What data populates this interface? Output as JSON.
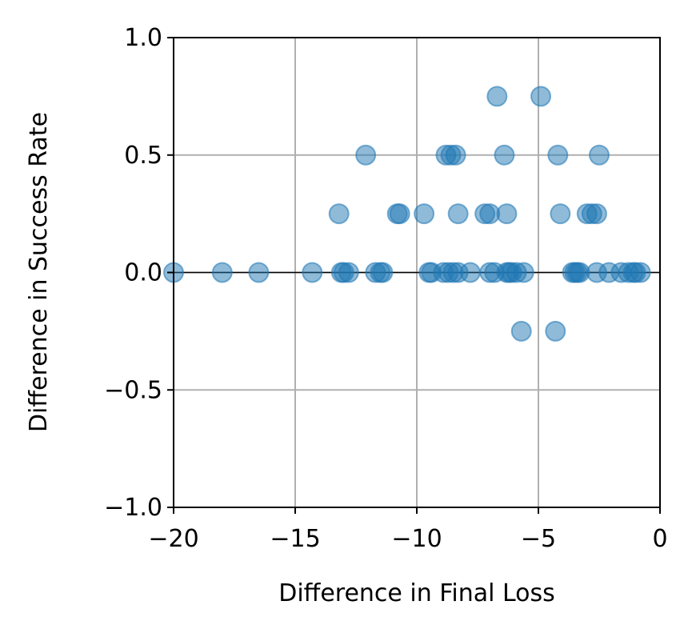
{
  "chart_data": {
    "type": "scatter",
    "title": "",
    "xlabel": "Difference in Final Loss",
    "ylabel": "Difference in Success Rate",
    "xlim": [
      -20,
      0
    ],
    "ylim": [
      -1.0,
      1.0
    ],
    "xticks": [
      -20,
      -15,
      -10,
      -5,
      0
    ],
    "yticks": [
      -1.0,
      -0.5,
      0.0,
      0.5,
      1.0
    ],
    "xtick_labels": [
      "−20",
      "−15",
      "−10",
      "−5",
      "0"
    ],
    "ytick_labels": [
      "−1.0",
      "−0.5",
      "0.0",
      "0.5",
      "1.0"
    ],
    "grid": true,
    "horizontal_reference_line": 0,
    "marker_color": "#1f77b4",
    "marker_alpha": 0.5,
    "points": [
      {
        "x": -20.0,
        "y": 0
      },
      {
        "x": -18.0,
        "y": 0
      },
      {
        "x": -16.5,
        "y": 0
      },
      {
        "x": -14.3,
        "y": 0
      },
      {
        "x": -13.1,
        "y": 0
      },
      {
        "x": -13.0,
        "y": 0
      },
      {
        "x": -12.8,
        "y": 0
      },
      {
        "x": -11.7,
        "y": 0
      },
      {
        "x": -11.5,
        "y": 0
      },
      {
        "x": -11.4,
        "y": 0
      },
      {
        "x": -9.5,
        "y": 0
      },
      {
        "x": -9.4,
        "y": 0
      },
      {
        "x": -8.9,
        "y": 0
      },
      {
        "x": -8.7,
        "y": 0
      },
      {
        "x": -8.5,
        "y": 0
      },
      {
        "x": -8.3,
        "y": 0
      },
      {
        "x": -7.8,
        "y": 0
      },
      {
        "x": -7.0,
        "y": 0
      },
      {
        "x": -6.8,
        "y": 0
      },
      {
        "x": -6.3,
        "y": 0
      },
      {
        "x": -6.2,
        "y": 0
      },
      {
        "x": -6.1,
        "y": 0
      },
      {
        "x": -5.9,
        "y": 0
      },
      {
        "x": -5.6,
        "y": 0
      },
      {
        "x": -3.6,
        "y": 0
      },
      {
        "x": -3.5,
        "y": 0
      },
      {
        "x": -3.4,
        "y": 0
      },
      {
        "x": -3.3,
        "y": 0
      },
      {
        "x": -2.6,
        "y": 0
      },
      {
        "x": -2.1,
        "y": 0
      },
      {
        "x": -1.6,
        "y": 0
      },
      {
        "x": -1.3,
        "y": 0
      },
      {
        "x": -1.1,
        "y": 0
      },
      {
        "x": -1.0,
        "y": 0
      },
      {
        "x": -0.8,
        "y": 0
      },
      {
        "x": -13.2,
        "y": 0.25
      },
      {
        "x": -10.8,
        "y": 0.25
      },
      {
        "x": -10.7,
        "y": 0.25
      },
      {
        "x": -9.7,
        "y": 0.25
      },
      {
        "x": -8.3,
        "y": 0.25
      },
      {
        "x": -7.2,
        "y": 0.25
      },
      {
        "x": -7.0,
        "y": 0.25
      },
      {
        "x": -6.3,
        "y": 0.25
      },
      {
        "x": -4.1,
        "y": 0.25
      },
      {
        "x": -3.0,
        "y": 0.25
      },
      {
        "x": -2.8,
        "y": 0.25
      },
      {
        "x": -2.6,
        "y": 0.25
      },
      {
        "x": -12.1,
        "y": 0.5
      },
      {
        "x": -8.8,
        "y": 0.5
      },
      {
        "x": -8.6,
        "y": 0.5
      },
      {
        "x": -8.4,
        "y": 0.5
      },
      {
        "x": -6.4,
        "y": 0.5
      },
      {
        "x": -4.2,
        "y": 0.5
      },
      {
        "x": -2.5,
        "y": 0.5
      },
      {
        "x": -6.7,
        "y": 0.75
      },
      {
        "x": -4.9,
        "y": 0.75
      },
      {
        "x": -5.7,
        "y": -0.25
      },
      {
        "x": -4.3,
        "y": -0.25
      }
    ]
  }
}
